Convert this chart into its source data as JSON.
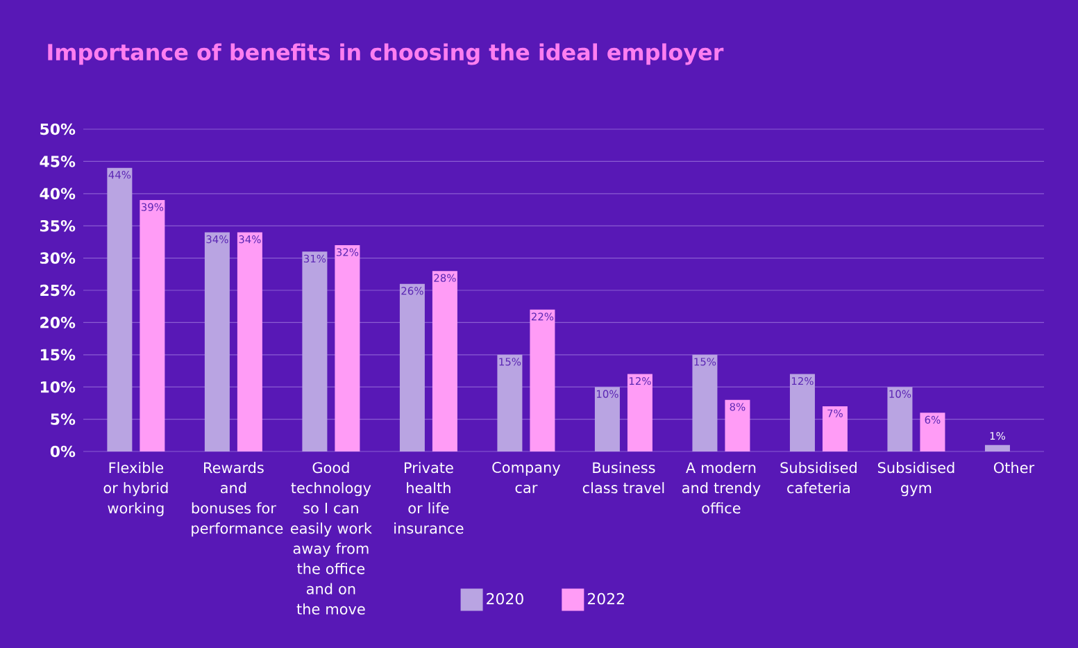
{
  "chart_data": {
    "type": "bar",
    "title": "Importance of benefits in choosing the ideal employer",
    "categories": [
      "Flexible or hybrid working",
      "Rewards and bonuses for performance",
      "Good technology so I can easily work away from the office and on the move",
      "Private health or life insurance",
      "Company car",
      "Business class travel",
      "A modern and trendy office",
      "Subsidised cafeteria",
      "Subsidised gym",
      "Other"
    ],
    "series": [
      {
        "name": "2020",
        "color": "#b9a4e2",
        "values": [
          44,
          34,
          31,
          26,
          15,
          10,
          15,
          12,
          10,
          1
        ],
        "value_labels": [
          "44%",
          "34%",
          "31%",
          "26%",
          "15%",
          "10%",
          "15%",
          "12%",
          "10%",
          "1%"
        ]
      },
      {
        "name": "2022",
        "color": "#ff9cf6",
        "values": [
          39,
          34,
          32,
          28,
          22,
          12,
          8,
          7,
          6,
          null
        ],
        "value_labels": [
          "39%",
          "34%",
          "32%",
          "28%",
          "22%",
          "12%",
          "8%",
          "7%",
          "6%",
          null
        ]
      }
    ],
    "ylim": [
      0,
      50
    ],
    "yticks": [
      {
        "value": 0,
        "label": "0%"
      },
      {
        "value": 5,
        "label": "5%"
      },
      {
        "value": 10,
        "label": "10%"
      },
      {
        "value": 15,
        "label": "15%"
      },
      {
        "value": 20,
        "label": "20%"
      },
      {
        "value": 25,
        "label": "25%"
      },
      {
        "value": 30,
        "label": "30%"
      },
      {
        "value": 35,
        "label": "35%"
      },
      {
        "value": 40,
        "label": "40%"
      },
      {
        "value": 45,
        "label": "45%"
      },
      {
        "value": 50,
        "label": "50%"
      }
    ],
    "grid": "y",
    "legend": "bottom"
  }
}
